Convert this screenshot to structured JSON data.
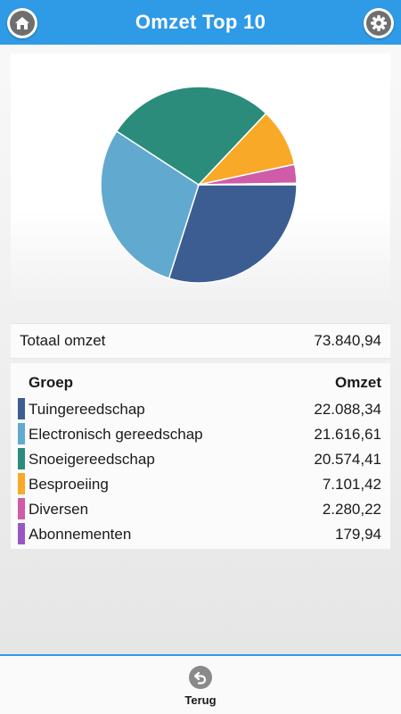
{
  "header": {
    "title": "Omzet Top 10",
    "home_icon": "home-icon",
    "settings_icon": "gear-icon"
  },
  "summary": {
    "total_label": "Totaal omzet",
    "total_value": "73.840,94"
  },
  "table": {
    "col_group": "Groep",
    "col_omzet": "Omzet",
    "rows": [
      {
        "name": "Tuingereedschap",
        "value": "22.088,34",
        "color": "#3b5d92"
      },
      {
        "name": "Electronisch gereedschap",
        "value": "21.616,61",
        "color": "#62a9cf"
      },
      {
        "name": "Snoeigereedschap",
        "value": "20.574,41",
        "color": "#2b8c7c"
      },
      {
        "name": "Besproeiing",
        "value": "7.101,42",
        "color": "#f8a928"
      },
      {
        "name": "Diversen",
        "value": "2.280,22",
        "color": "#cf5ca8"
      },
      {
        "name": "Abonnementen",
        "value": "179,94",
        "color": "#9957c4"
      }
    ]
  },
  "chart_data": {
    "type": "pie",
    "categories": [
      "Tuingereedschap",
      "Electronisch gereedschap",
      "Snoeigereedschap",
      "Besproeiing",
      "Diversen",
      "Abonnementen"
    ],
    "values": [
      22088.34,
      21616.61,
      20574.41,
      7101.42,
      2280.22,
      179.94
    ],
    "colors": [
      "#3b5d92",
      "#62a9cf",
      "#2b8c7c",
      "#f8a928",
      "#cf5ca8",
      "#9957c4"
    ]
  },
  "footer": {
    "back_label": "Terug",
    "back_icon": "undo-arrow-icon"
  },
  "colors": {
    "accent": "#2f9ae6"
  }
}
